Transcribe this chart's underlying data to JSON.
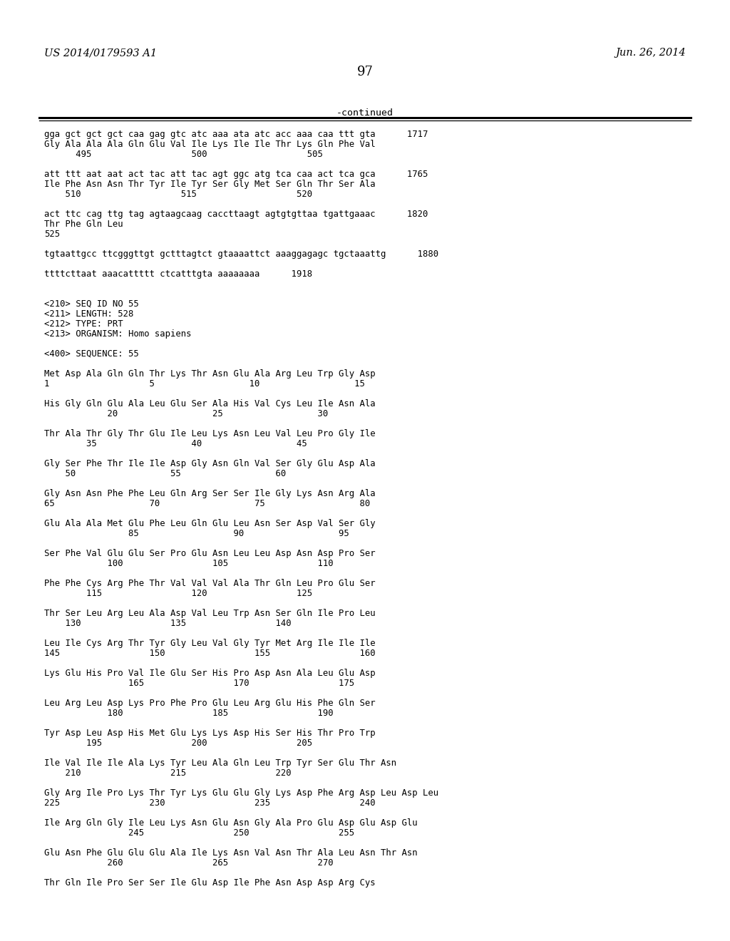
{
  "header_left": "US 2014/0179593 A1",
  "header_right": "Jun. 26, 2014",
  "page_number": "97",
  "continued_label": "-continued",
  "background_color": "#ffffff",
  "text_color": "#000000",
  "body_lines": [
    "gga gct gct gct caa gag gtc atc aaa ata atc acc aaa caa ttt gta      1717",
    "Gly Ala Ala Ala Gln Glu Val Ile Lys Ile Ile Thr Lys Gln Phe Val",
    "      495                   500                   505",
    "",
    "att ttt aat aat act tac att tac agt ggc atg tca caa act tca gca      1765",
    "Ile Phe Asn Asn Thr Tyr Ile Tyr Ser Gly Met Ser Gln Thr Ser Ala",
    "    510                   515                   520",
    "",
    "act ttc cag ttg tag agtaagcaag caccttaagt agtgtgttaa tgattgaaac      1820",
    "Thr Phe Gln Leu",
    "525",
    "",
    "tgtaattgcc ttcgggttgt gctttagtct gtaaaattct aaaggagagc tgctaaattg      1880",
    "",
    "ttttcttaat aaacattttt ctcatttgta aaaaaaaa      1918",
    "",
    "",
    "<210> SEQ ID NO 55",
    "<211> LENGTH: 528",
    "<212> TYPE: PRT",
    "<213> ORGANISM: Homo sapiens",
    "",
    "<400> SEQUENCE: 55",
    "",
    "Met Asp Ala Gln Gln Thr Lys Thr Asn Glu Ala Arg Leu Trp Gly Asp",
    "1                   5                  10                  15",
    "",
    "His Gly Gln Glu Ala Leu Glu Ser Ala His Val Cys Leu Ile Asn Ala",
    "            20                  25                  30",
    "",
    "Thr Ala Thr Gly Thr Glu Ile Leu Lys Asn Leu Val Leu Pro Gly Ile",
    "        35                  40                  45",
    "",
    "Gly Ser Phe Thr Ile Ile Asp Gly Asn Gln Val Ser Gly Glu Asp Ala",
    "    50                  55                  60",
    "",
    "Gly Asn Asn Phe Phe Leu Gln Arg Ser Ser Ile Gly Lys Asn Arg Ala",
    "65                  70                  75                  80",
    "",
    "Glu Ala Ala Met Glu Phe Leu Gln Glu Leu Asn Ser Asp Val Ser Gly",
    "                85                  90                  95",
    "",
    "Ser Phe Val Glu Glu Ser Pro Glu Asn Leu Leu Asp Asn Asp Pro Ser",
    "            100                 105                 110",
    "",
    "Phe Phe Cys Arg Phe Thr Val Val Val Ala Thr Gln Leu Pro Glu Ser",
    "        115                 120                 125",
    "",
    "Thr Ser Leu Arg Leu Ala Asp Val Leu Trp Asn Ser Gln Ile Pro Leu",
    "    130                 135                 140",
    "",
    "Leu Ile Cys Arg Thr Tyr Gly Leu Val Gly Tyr Met Arg Ile Ile Ile",
    "145                 150                 155                 160",
    "",
    "Lys Glu His Pro Val Ile Glu Ser His Pro Asp Asn Ala Leu Glu Asp",
    "                165                 170                 175",
    "",
    "Leu Arg Leu Asp Lys Pro Phe Pro Glu Leu Arg Glu His Phe Gln Ser",
    "            180                 185                 190",
    "",
    "Tyr Asp Leu Asp His Met Glu Lys Lys Asp His Ser His Thr Pro Trp",
    "        195                 200                 205",
    "",
    "Ile Val Ile Ile Ala Lys Tyr Leu Ala Gln Leu Trp Tyr Ser Glu Thr Asn",
    "    210                 215                 220",
    "",
    "Gly Arg Ile Pro Lys Thr Tyr Lys Glu Glu Gly Lys Asp Phe Arg Asp Leu Asp Leu",
    "225                 230                 235                 240",
    "",
    "Ile Arg Gln Gly Ile Leu Lys Asn Glu Asn Gly Ala Pro Glu Asp Glu Asp Glu",
    "                245                 250                 255",
    "",
    "Glu Asn Phe Glu Glu Glu Ala Ile Lys Asn Val Asn Thr Ala Leu Asn Thr Asn",
    "            260                 265                 270",
    "",
    "Thr Gln Ile Pro Ser Ser Ile Glu Asp Ile Phe Asn Asp Asp Arg Cys"
  ]
}
